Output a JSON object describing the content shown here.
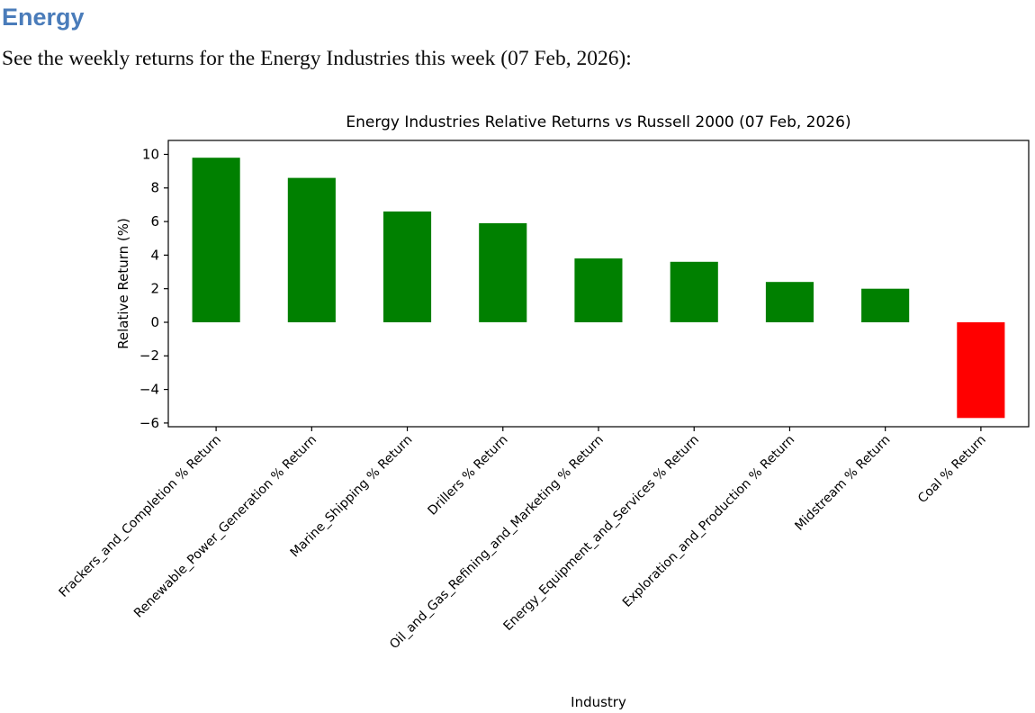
{
  "page": {
    "heading": "Energy",
    "heading_color": "#4a7cba",
    "intro": "See the weekly returns for the Energy Industries this week (07 Feb, 2026):"
  },
  "chart_data": {
    "type": "bar",
    "title": "Energy Industries Relative Returns vs Russell 2000 (07 Feb, 2026)",
    "xlabel": "Industry",
    "ylabel": "Relative Return (%)",
    "categories": [
      "Frackers_and_Completion % Return",
      "Renewable_Power_Generation % Return",
      "Marine_Shipping % Return",
      "Drillers % Return",
      "Oil_and_Gas_Refining_and_Marketing % Return",
      "Energy_Equipment_and_Services % Return",
      "Exploration_and_Production % Return",
      "Midstream % Return",
      "Coal % Return"
    ],
    "values": [
      9.8,
      8.6,
      6.6,
      5.9,
      3.8,
      3.6,
      2.4,
      2.0,
      -5.7
    ],
    "bar_colors": [
      "#008000",
      "#008000",
      "#008000",
      "#008000",
      "#008000",
      "#008000",
      "#008000",
      "#008000",
      "#ff0000"
    ],
    "positive_color": "#008000",
    "negative_color": "#ff0000",
    "ylim": [
      -6.22,
      10.83
    ],
    "yticks": [
      -6,
      -4,
      -2,
      0,
      2,
      4,
      6,
      8,
      10
    ],
    "ytick_labels": [
      "−6",
      "−4",
      "−2",
      "0",
      "2",
      "4",
      "6",
      "8",
      "10"
    ],
    "xtick_rotation_deg": 45,
    "bar_width_fraction": 0.5,
    "grid": false,
    "legend": "none",
    "spine_color": "#000000"
  }
}
